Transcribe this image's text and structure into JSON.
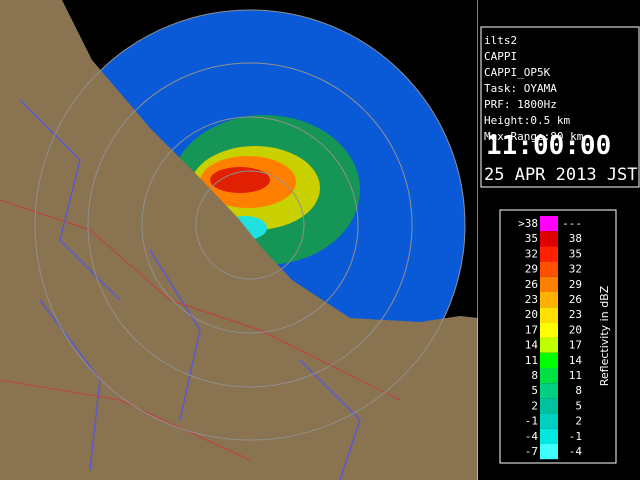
{
  "info": {
    "lines": [
      "ilts2",
      "CAPPI",
      "CAPPI_OP5K",
      "Task: OYAMA",
      "PRF: 1800Hz",
      "Height:0.5 km",
      "Max Range:80 km"
    ],
    "time": "11:00:00",
    "date": "25 APR 2013 JST"
  },
  "legend": {
    "title": "Reflectivity in dBZ",
    "rows": [
      {
        "low": ">38",
        "high": "---",
        "color": "#ff00ff"
      },
      {
        "low": "35",
        "high": "38",
        "color": "#e00000"
      },
      {
        "low": "32",
        "high": "35",
        "color": "#ff2000"
      },
      {
        "low": "29",
        "high": "32",
        "color": "#ff5000"
      },
      {
        "low": "26",
        "high": "29",
        "color": "#ff8000"
      },
      {
        "low": "23",
        "high": "26",
        "color": "#ffb000"
      },
      {
        "low": "20",
        "high": "23",
        "color": "#ffe000"
      },
      {
        "low": "17",
        "high": "20",
        "color": "#ffff00"
      },
      {
        "low": "14",
        "high": "17",
        "color": "#c0ff00"
      },
      {
        "low": "11",
        "high": "14",
        "color": "#00ff00"
      },
      {
        "low": "8",
        "high": "11",
        "color": "#00e040"
      },
      {
        "low": "5",
        "high": "8",
        "color": "#00d080"
      },
      {
        "low": "2",
        "high": "5",
        "color": "#00c0a0"
      },
      {
        "low": "-1",
        "high": "2",
        "color": "#00d0c0"
      },
      {
        "low": "-4",
        "high": "-1",
        "color": "#00e8e0"
      },
      {
        "low": "-7",
        "high": "-4",
        "color": "#40ffff"
      }
    ]
  }
}
